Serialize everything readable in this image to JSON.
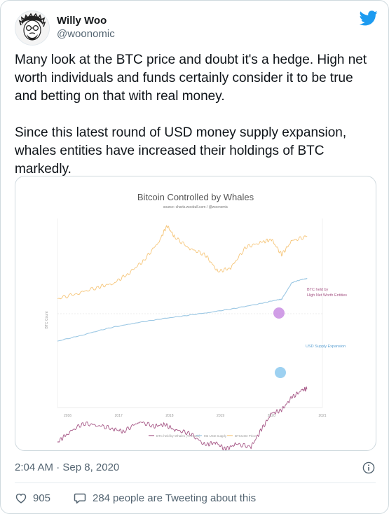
{
  "author": {
    "name": "Willy Woo",
    "handle": "@woonomic"
  },
  "tweet": {
    "paragraphs": [
      "Many look at the BTC price and doubt it's a hedge. High net worth individuals and funds certainly consider it to be true and betting on that with real money.",
      "Since this latest round of USD money supply expansion, whales entities have increased their holdings of BTC markedly."
    ],
    "timestamp": "2:04 AM · Sep 8, 2020",
    "likes_count": "905",
    "engagement_count": "284",
    "engagement_text": "people are Tweeting about this"
  },
  "colors": {
    "twitter_blue": "#1d9bf0",
    "btc_price": "#f6c67a",
    "btc_whales": "#a55585",
    "usd_supply": "#9cc8e4",
    "highlight_purple": "#c27ddf",
    "highlight_blue": "#7cc2ec"
  },
  "icons": {
    "bird": "twitter-bird-icon",
    "info": "info-icon",
    "heart": "heart-icon",
    "chat": "chat-bubble-icon"
  },
  "chart_data": {
    "type": "line",
    "title": "Bitcoin Controlled by Whales",
    "source": "source: charts.woobull.com / @woonomic",
    "x": [
      "2016",
      "2017",
      "2018",
      "2019",
      "2020",
      "2021"
    ],
    "xlim": [
      2015.8,
      2021
    ],
    "series": [
      {
        "name": "BTC held by Whales",
        "color": "#a55585",
        "annotation": "BTC held by High Net Worth Entities",
        "x": [
          2015.8,
          2016.0,
          2016.3,
          2016.6,
          2016.9,
          2017.1,
          2017.4,
          2017.7,
          2017.9,
          2018.1,
          2018.4,
          2018.7,
          2018.9,
          2019.1,
          2019.3,
          2019.6,
          2019.8,
          2020.0,
          2020.2,
          2020.4,
          2020.6,
          2020.7
        ],
        "values": [
          0.3,
          0.4,
          0.51,
          0.49,
          0.45,
          0.42,
          0.53,
          0.48,
          0.5,
          0.44,
          0.4,
          0.27,
          0.3,
          0.22,
          0.28,
          0.25,
          0.44,
          0.62,
          0.66,
          0.8,
          0.88,
          0.9
        ]
      },
      {
        "name": "M2 USD Supply",
        "color": "#9cc8e4",
        "annotation": "USD Supply Expansion",
        "x": [
          2015.8,
          2016.3,
          2016.8,
          2017.3,
          2017.8,
          2018.3,
          2018.8,
          2019.3,
          2019.8,
          2020.1,
          2020.2,
          2020.4,
          2020.6,
          2020.7
        ],
        "values": [
          0.05,
          0.14,
          0.24,
          0.31,
          0.37,
          0.42,
          0.47,
          0.53,
          0.6,
          0.65,
          0.66,
          0.9,
          0.95,
          0.96
        ]
      },
      {
        "name": "BTCUSD Price",
        "color": "#f6c67a",
        "x": [
          2015.8,
          2016.2,
          2016.6,
          2016.9,
          2017.2,
          2017.5,
          2017.8,
          2017.95,
          2018.1,
          2018.4,
          2018.7,
          2018.95,
          2019.2,
          2019.5,
          2019.8,
          2020.0,
          2020.2,
          2020.4,
          2020.7
        ],
        "values": [
          0.05,
          0.12,
          0.2,
          0.25,
          0.38,
          0.55,
          0.8,
          1.0,
          0.85,
          0.7,
          0.62,
          0.4,
          0.45,
          0.72,
          0.78,
          0.82,
          0.62,
          0.8,
          0.86
        ]
      }
    ],
    "legend": [
      "BTC held by Whales (% in 10k)",
      "M2 USD Supply",
      "BTCUSD Price"
    ],
    "legend_position": "bottom",
    "ylabel": "BTC Count"
  }
}
